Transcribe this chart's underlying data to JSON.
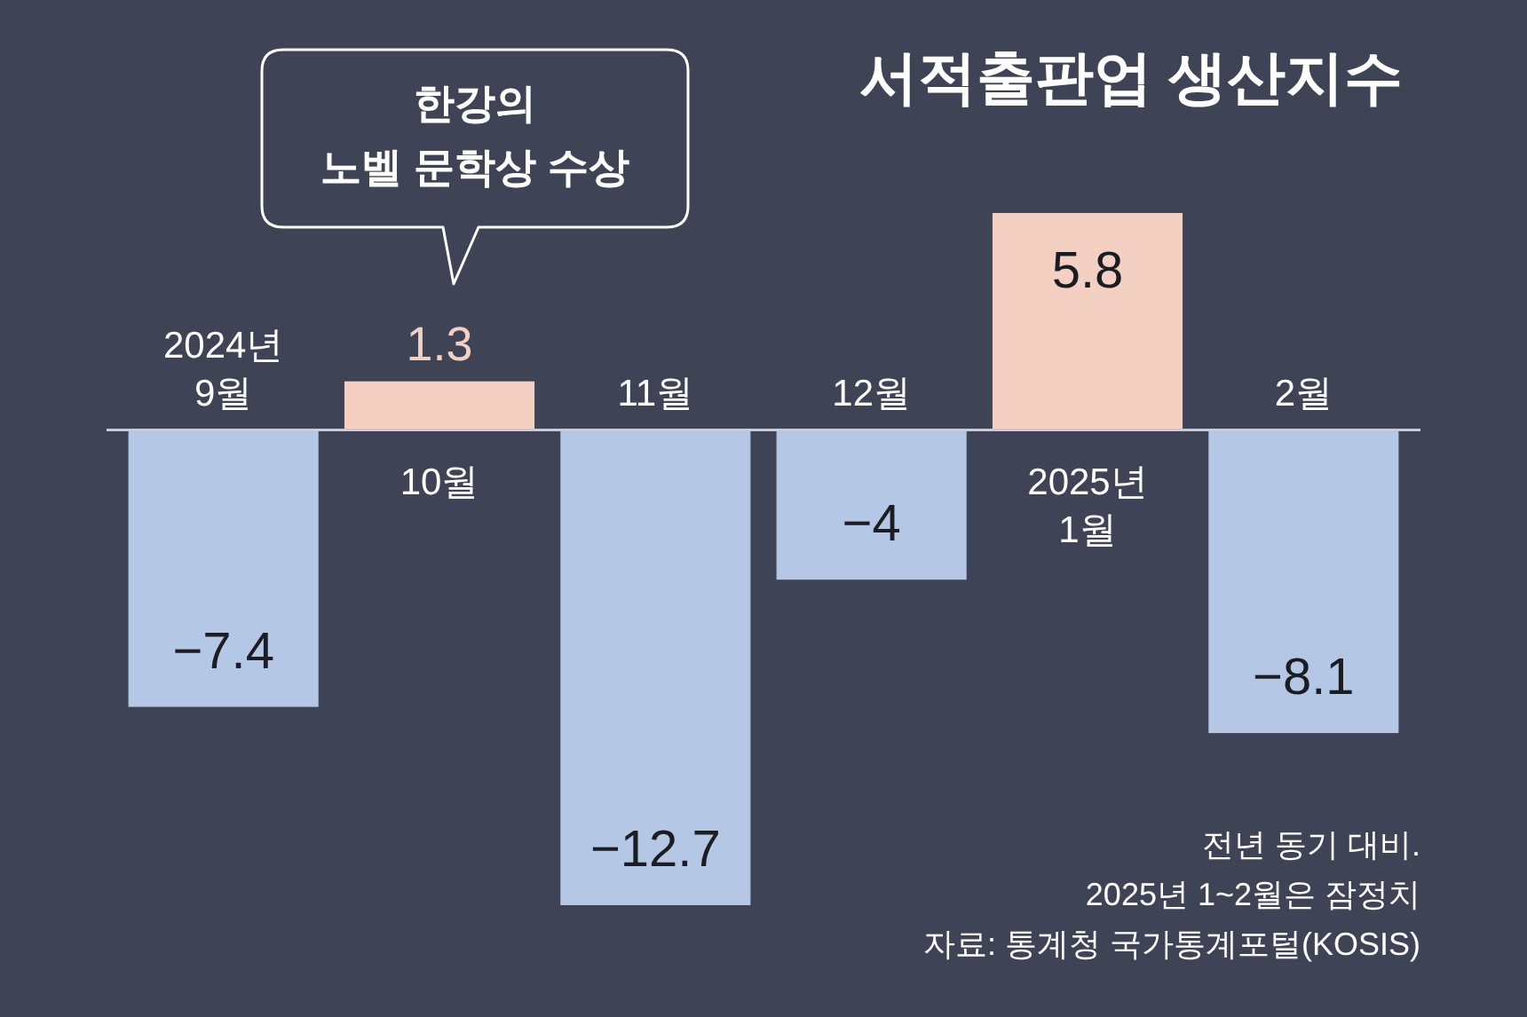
{
  "chart_data": {
    "type": "bar",
    "title": "서적출판업 생산지수",
    "categories": [
      "2024년 9월",
      "10월",
      "11월",
      "12월",
      "2025년 1월",
      "2월"
    ],
    "values": [
      -7.4,
      1.3,
      -12.7,
      -4,
      5.8,
      -8.1
    ],
    "colors": [
      "#b4c8e6",
      "#f3d0c1",
      "#b4c8e6",
      "#b4c8e6",
      "#f3d0c1",
      "#b4c8e6"
    ],
    "value_labels": [
      "−7.4",
      "1.3",
      "−12.7",
      "−4",
      "5.8",
      "−8.1"
    ],
    "annotations": [
      "한강의 노벨 문학상 수상",
      "전년 동기 대비.",
      "2025년 1~2월은 잠정치",
      "자료: 통계청 국가통계포털(KOSIS)"
    ]
  }
}
